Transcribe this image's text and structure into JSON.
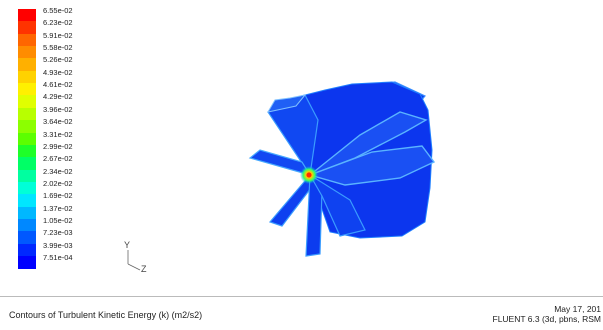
{
  "chart_data": {
    "type": "heatmap",
    "title": "Contours of Turbulent Kinetic Energy (k) (m2/s2)",
    "colorbar": {
      "labels": [
        "6.55e-02",
        "6.23e-02",
        "5.91e-02",
        "5.58e-02",
        "5.26e-02",
        "4.93e-02",
        "4.61e-02",
        "4.29e-02",
        "3.96e-02",
        "3.64e-02",
        "3.31e-02",
        "2.99e-02",
        "2.67e-02",
        "2.34e-02",
        "2.02e-02",
        "1.69e-02",
        "1.37e-02",
        "1.05e-02",
        "7.23e-03",
        "3.99e-03",
        "7.51e-04"
      ],
      "colors": [
        "#ff0000",
        "#ff3300",
        "#ff6600",
        "#ff8c00",
        "#ffb000",
        "#ffd200",
        "#fff000",
        "#e0ff00",
        "#b8ff00",
        "#8cff00",
        "#5cff00",
        "#1eff28",
        "#00ff66",
        "#00ffa0",
        "#00ffd8",
        "#00e6ff",
        "#00b8ff",
        "#0088ff",
        "#0058ff",
        "#0028ff",
        "#0000ff"
      ]
    },
    "axis_triad": {
      "y": "Y",
      "z": "Z"
    }
  },
  "info": {
    "date": "May 17, 201",
    "solver": "FLUENT 6.3 (3d, pbns, RSM"
  }
}
